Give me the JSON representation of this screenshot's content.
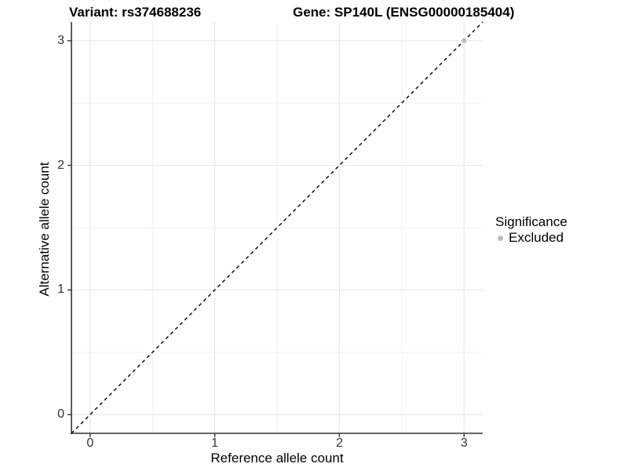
{
  "chart_data": {
    "type": "scatter",
    "title_left": "Variant: rs374688236",
    "title_right": "Gene: SP140L (ENSG00000185404)",
    "xlabel": "Reference allele count",
    "ylabel": "Alternative allele count",
    "x_ticks": [
      0,
      1,
      2,
      3
    ],
    "y_ticks": [
      0,
      1,
      2,
      3
    ],
    "minor_ticks": [
      0.5,
      1.5,
      2.5
    ],
    "xlim": [
      -0.15,
      3.15
    ],
    "ylim": [
      -0.15,
      3.15
    ],
    "grid": true,
    "legend_position": "right",
    "identity_line": {
      "style": "dashed",
      "from": [
        -0.15,
        -0.15
      ],
      "to": [
        3.15,
        3.15
      ]
    },
    "series": [
      {
        "name": "Excluded",
        "color": "#bdbdbd",
        "points": [
          {
            "x": 3,
            "y": 3
          }
        ]
      }
    ],
    "legend": {
      "title": "Significance",
      "items": [
        {
          "label": "Excluded",
          "color": "#bdbdbd"
        }
      ]
    },
    "colors": {
      "axis": "#333333",
      "grid_major": "#e4e4e4",
      "grid_minor": "#f1f1f1",
      "dash_line": "#000000",
      "background": "#ffffff"
    }
  }
}
